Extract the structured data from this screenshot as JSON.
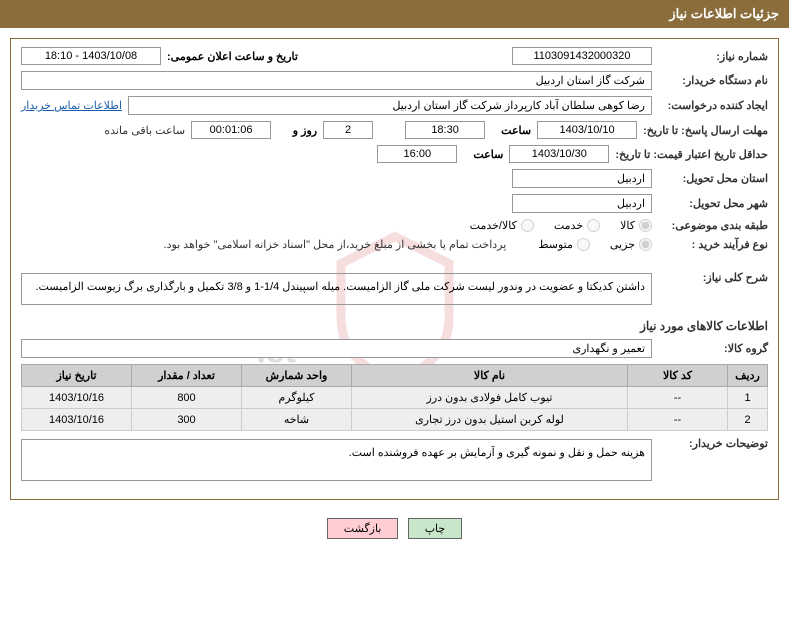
{
  "header": {
    "title": "جزئیات اطلاعات نیاز"
  },
  "labels": {
    "needNo": "شماره نیاز:",
    "announceDT": "تاریخ و ساعت اعلان عمومی:",
    "buyerOrg": "نام دستگاه خریدار:",
    "requester": "ایجاد کننده درخواست:",
    "contactLink": "اطلاعات تماس خریدار",
    "respDeadline": "مهلت ارسال پاسخ: تا تاریخ:",
    "hour": "ساعت",
    "daysAnd": "روز و",
    "remaining": "ساعت باقی مانده",
    "priceValidity": "حداقل تاریخ اعتبار قیمت: تا تاریخ:",
    "deliveryProvince": "استان محل تحویل:",
    "deliveryCity": "شهر محل تحویل:",
    "subjectCat": "طبقه بندی موضوعی:",
    "purchaseType": "نوع فرآیند خرید :",
    "generalDesc": "شرح کلی نیاز:",
    "itemsInfo": "اطلاعات کالاهای مورد نیاز",
    "itemGroup": "گروه کالا:",
    "buyerNotes": "توضیحات خریدار:",
    "print": "چاپ",
    "back": "بازگشت"
  },
  "values": {
    "needNo": "1103091432000320",
    "announceDT": "1403/10/08 - 18:10",
    "buyerOrg": "شرکت گاز استان اردبیل",
    "requester": "رضا کوهی سلطان آباد کارپرداز شرکت گاز استان اردبیل",
    "respDate": "1403/10/10",
    "respTime": "18:30",
    "remainDays": "2",
    "remainTime": "00:01:06",
    "priceDate": "1403/10/30",
    "priceTime": "16:00",
    "province": "اردبیل",
    "city": "اردبیل",
    "noteText": "پرداخت تمام یا بخشی از مبلغ خرید،از محل \"اسناد خزانه اسلامی\" خواهد بود.",
    "generalDesc": "داشتن کدیکتا و عضویت در وندور لیست شرکت ملی گاز الزامیست. میله اسپیندل 1/4-1 و 3/8 تکمیل و بارگذاری برگ زیوست الزامیست.",
    "itemGroup": "تعمیر و نگهداری",
    "buyerNotes": "هزینه حمل و نقل و نمونه گیری و آزمایش بر عهده فروشنده است."
  },
  "radios": {
    "cat": [
      {
        "label": "کالا",
        "checked": true
      },
      {
        "label": "خدمت",
        "checked": false
      },
      {
        "label": "کالا/خدمت",
        "checked": false
      }
    ],
    "ptype": [
      {
        "label": "جزیی",
        "checked": true
      },
      {
        "label": "متوسط",
        "checked": false
      }
    ]
  },
  "table": {
    "cols": [
      "ردیف",
      "کد کالا",
      "نام کالا",
      "واحد شمارش",
      "تعداد / مقدار",
      "تاریخ نیاز"
    ],
    "rows": [
      [
        "1",
        "--",
        "تیوب کامل فولادی بدون درز",
        "کیلوگرم",
        "800",
        "1403/10/16"
      ],
      [
        "2",
        "--",
        "لوله کربن استیل بدون درز تجاری",
        "شاخه",
        "300",
        "1403/10/16"
      ]
    ]
  }
}
